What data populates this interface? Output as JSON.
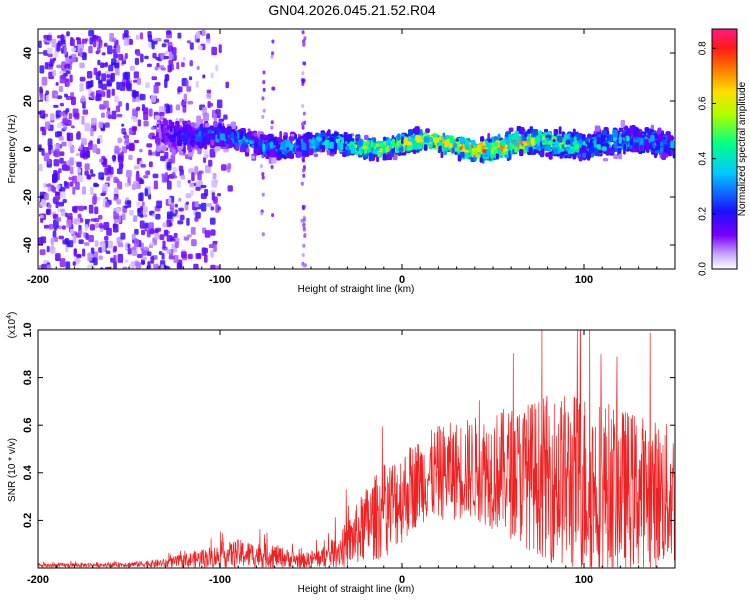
{
  "title": "GN04.2026.045.21.52.R04",
  "chart_data": [
    {
      "type": "heatmap",
      "xlabel": "Height of straight line (km)",
      "ylabel": "Frequency (Hz)",
      "xlim": [
        -200,
        150
      ],
      "ylim": [
        -50,
        50
      ],
      "x_ticks": [
        -200,
        -100,
        0,
        100
      ],
      "x_tick_labels": [
        "-200",
        "-100",
        "0",
        "100"
      ],
      "y_ticks": [
        -40,
        -20,
        0,
        20,
        40
      ],
      "y_tick_labels": [
        "-40",
        "-20",
        "0",
        "20",
        "40"
      ],
      "colorbar": {
        "label": "Normalized spectral amplitude",
        "range": [
          0,
          0.87
        ],
        "ticks": [
          0.0,
          0.2,
          0.4,
          0.6,
          0.8
        ],
        "tick_labels": [
          "0.0",
          "0.2",
          "0.4",
          "0.6",
          "0.8"
        ],
        "colormap": [
          "#ffffff",
          "#7a00ff",
          "#1d10ff",
          "#00c8ff",
          "#00ff66",
          "#ffe000",
          "#ff1a1a",
          "#ff1a80"
        ]
      },
      "ridge": {
        "x": [
          -135,
          -100,
          -50,
          0,
          50,
          100,
          150
        ],
        "center_hz": [
          8,
          4,
          1,
          2,
          1,
          3,
          2
        ],
        "half_width_hz": [
          12,
          8,
          7,
          6,
          7,
          9,
          10
        ],
        "peak_amplitude": [
          0.15,
          0.3,
          0.35,
          0.6,
          0.75,
          0.4,
          0.3
        ]
      }
    },
    {
      "type": "line",
      "xlabel": "Height of straight line (km)",
      "ylabel": "SNR (10 * v/v)",
      "y_scale_note": "(x10",
      "y_scale_exp": "4",
      "y_scale_close": ")",
      "xlim": [
        -200,
        150
      ],
      "ylim": [
        0,
        1.0
      ],
      "x_ticks": [
        -200,
        -100,
        0,
        100
      ],
      "x_tick_labels": [
        "-200",
        "-100",
        "0",
        "100"
      ],
      "y_ticks": [
        0.2,
        0.4,
        0.6,
        0.8,
        1.0
      ],
      "y_tick_labels": [
        "0.2",
        "0.4",
        "0.6",
        "0.8",
        "1.0"
      ],
      "series": [
        {
          "name": "SNR",
          "color": "#ee2222",
          "envelope": {
            "x": [
              -200,
              -150,
              -130,
              -110,
              -90,
              -70,
              -55,
              -40,
              -30,
              -20,
              -10,
              0,
              10,
              20,
              40,
              60,
              80,
              100,
              120,
              150
            ],
            "mean": [
              0.01,
              0.015,
              0.02,
              0.04,
              0.06,
              0.05,
              0.03,
              0.05,
              0.1,
              0.18,
              0.24,
              0.3,
              0.37,
              0.4,
              0.42,
              0.4,
              0.38,
              0.35,
              0.33,
              0.3
            ],
            "amp": [
              0.01,
              0.01,
              0.02,
              0.04,
              0.06,
              0.05,
              0.03,
              0.05,
              0.1,
              0.16,
              0.2,
              0.2,
              0.18,
              0.2,
              0.22,
              0.28,
              0.35,
              0.4,
              0.35,
              0.3
            ]
          },
          "max_point": {
            "x": 98,
            "y": 1.0
          }
        }
      ]
    }
  ]
}
